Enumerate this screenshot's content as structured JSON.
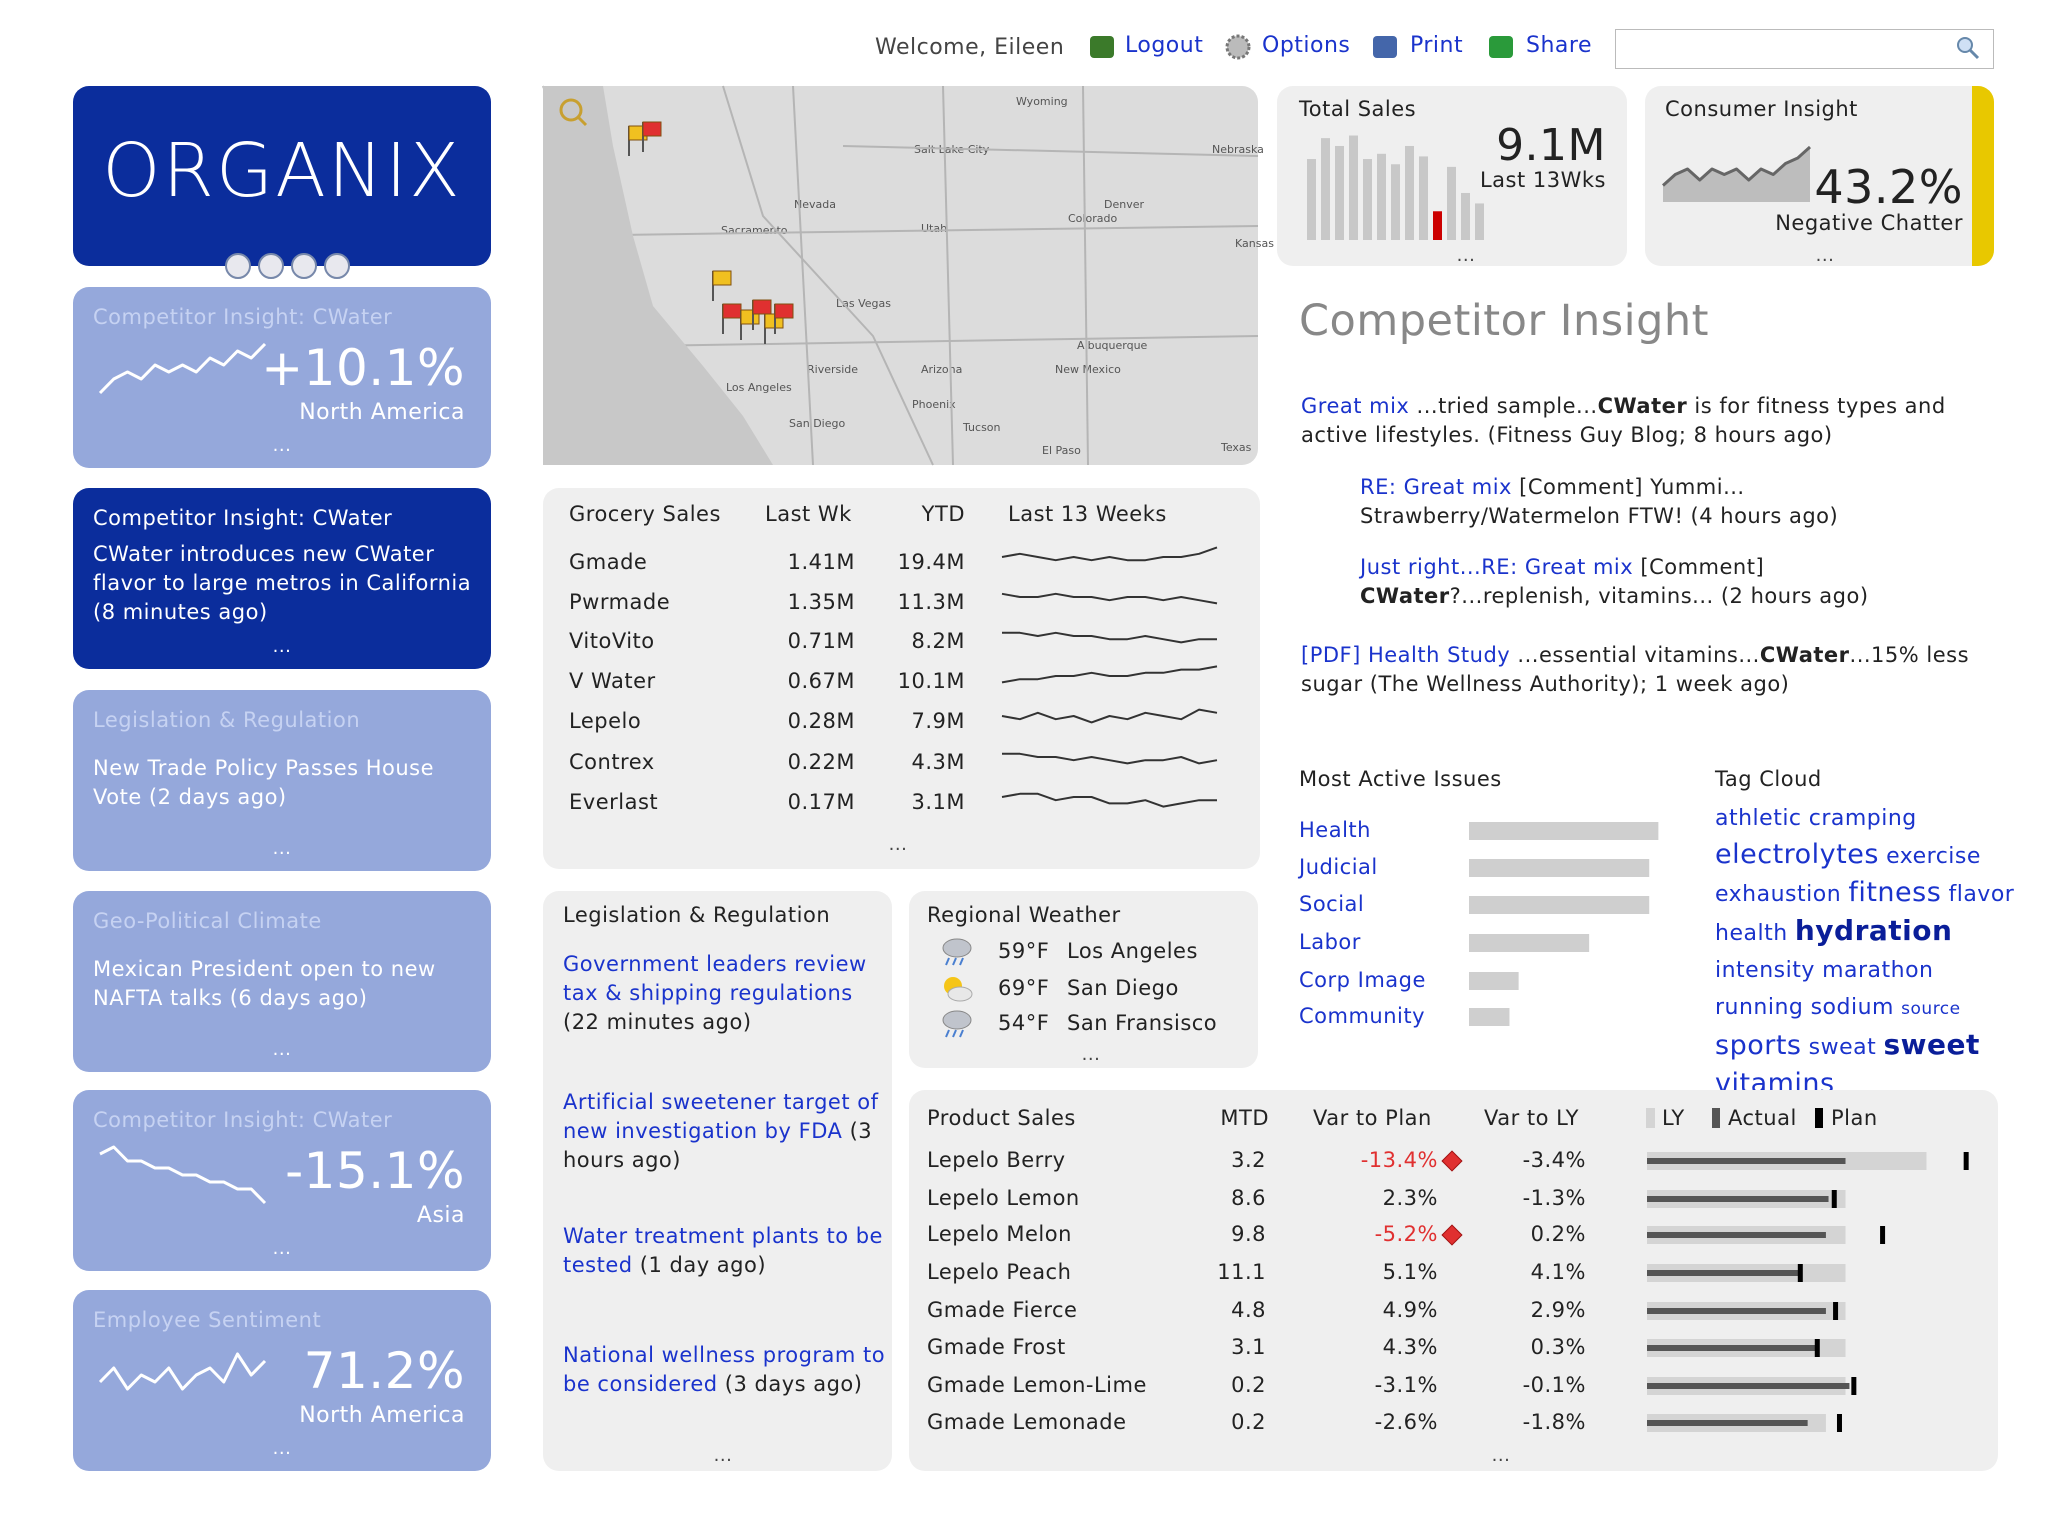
{
  "header": {
    "welcome": "Welcome, Eileen",
    "links": [
      "Logout",
      "Options",
      "Print",
      "Share"
    ]
  },
  "more": "...",
  "logo": "ORGANIX",
  "tiles": [
    {
      "theme": "light",
      "title": "Competitor Insight: CWater",
      "value": "+10.1%",
      "region": "North America",
      "trend": [
        2,
        4,
        5,
        4,
        6,
        5,
        6,
        5,
        7,
        6,
        8,
        7,
        9
      ]
    },
    {
      "theme": "dark",
      "title": "Competitor Insight: CWater",
      "text": "CWater introduces new CWater flavor to large metros in California (8 minutes ago)"
    },
    {
      "theme": "light",
      "title": "Legislation & Regulation",
      "text": "New Trade Policy Passes House Vote (2 days ago)"
    },
    {
      "theme": "light",
      "title": "Geo-Political Climate",
      "text": "Mexican President open to new NAFTA talks (6 days ago)"
    },
    {
      "theme": "light",
      "title": "Competitor Insight: CWater",
      "value": "-15.1%",
      "region": "Asia",
      "trend": [
        8,
        9,
        7,
        7,
        6,
        6,
        5,
        5,
        4,
        4,
        3,
        3,
        1
      ]
    },
    {
      "theme": "light",
      "title": "Employee Sentiment",
      "value": "71.2%",
      "region": "North America",
      "trend": [
        4,
        6,
        3,
        5,
        4,
        6,
        3,
        5,
        6,
        4,
        8,
        5,
        7
      ]
    }
  ],
  "map": {
    "labels": [
      "Wyoming",
      "Nebraska",
      "Salt Lake City",
      "Nevada",
      "Denver",
      "Utah",
      "Colorado",
      "Kansas",
      "Sacramento",
      "Las Vegas",
      "Albuquerque",
      "Arizona",
      "New Mexico",
      "Riverside",
      "Los Angeles",
      "Phoenix",
      "San Diego",
      "Tucson",
      "El Paso",
      "Texas"
    ]
  },
  "total_sales": {
    "title": "Total Sales",
    "value": "9.1M",
    "label": "Last 13Wks",
    "bars": [
      62,
      78,
      72,
      80,
      62,
      66,
      58,
      72,
      64,
      22,
      56,
      36,
      28
    ],
    "color": "#c8c8c8",
    "highlight": 9,
    "highlight_color": "#cc0000"
  },
  "consumer_insight": {
    "title": "Consumer Insight",
    "value": "43.2%",
    "label": "Negative Chatter",
    "trend": [
      3,
      5,
      6,
      4,
      6,
      5,
      6,
      4,
      6,
      5,
      7,
      8,
      10
    ],
    "status_color": "#e8c800"
  },
  "grocery": {
    "columns": [
      "Grocery Sales",
      "Last Wk",
      "YTD",
      "Last 13 Weeks"
    ],
    "rows": [
      {
        "name": "Gmade",
        "last_wk": "1.41M",
        "ytd": "19.4M",
        "trend": [
          5,
          6,
          5,
          4,
          5,
          4,
          5,
          4,
          4,
          5,
          5,
          6,
          8
        ]
      },
      {
        "name": "Pwrmade",
        "last_wk": "1.35M",
        "ytd": "11.3M",
        "trend": [
          6,
          5,
          5,
          6,
          5,
          5,
          4,
          5,
          5,
          4,
          5,
          4,
          3
        ]
      },
      {
        "name": "VitoVito",
        "last_wk": "0.71M",
        "ytd": "8.2M",
        "trend": [
          6,
          6,
          5,
          6,
          5,
          5,
          4,
          4,
          5,
          4,
          3,
          4,
          4
        ]
      },
      {
        "name": "V Water",
        "last_wk": "0.67M",
        "ytd": "10.1M",
        "trend": [
          3,
          4,
          4,
          5,
          5,
          6,
          5,
          5,
          6,
          6,
          7,
          7,
          8
        ]
      },
      {
        "name": "Lepelo",
        "last_wk": "0.28M",
        "ytd": "7.9M",
        "trend": [
          5,
          4,
          6,
          4,
          5,
          3,
          5,
          4,
          6,
          5,
          4,
          7,
          6
        ]
      },
      {
        "name": "Contrex",
        "last_wk": "0.22M",
        "ytd": "4.3M",
        "trend": [
          6,
          6,
          5,
          5,
          4,
          5,
          4,
          3,
          4,
          4,
          5,
          3,
          4
        ]
      },
      {
        "name": "Everlast",
        "last_wk": "0.17M",
        "ytd": "3.1M",
        "trend": [
          5,
          6,
          6,
          4,
          5,
          5,
          3,
          3,
          4,
          2,
          3,
          4,
          4
        ]
      }
    ]
  },
  "legislation": {
    "title": "Legislation & Regulation",
    "items": [
      {
        "link": "Government leaders review tax & shipping regulations",
        "time": "(22 minutes ago)"
      },
      {
        "link": "Artificial sweetener target of new investigation by FDA",
        "time": "(3 hours ago)"
      },
      {
        "link": "Water treatment plants to be tested",
        "time": "(1 day ago)"
      },
      {
        "link": "National wellness program to be considered",
        "time": "(3 days ago)"
      }
    ]
  },
  "weather": {
    "title": "Regional Weather",
    "rows": [
      {
        "icon": "rain",
        "temp": "59°F",
        "city": "Los Angeles"
      },
      {
        "icon": "sun",
        "temp": "69°F",
        "city": "San Diego"
      },
      {
        "icon": "rain",
        "temp": "54°F",
        "city": "San Fransisco"
      }
    ]
  },
  "competitor_insight": {
    "title": "Competitor Insight",
    "items": [
      {
        "indent": 0,
        "parts": [
          {
            "style": "link",
            "text": "Great mix"
          },
          {
            "style": "plain",
            "text": " ...tried sample..."
          },
          {
            "style": "bold",
            "text": "CWater"
          },
          {
            "style": "plain",
            "text": " is for fitness types and active lifestyles. (Fitness Guy Blog; 8 hours ago)"
          }
        ]
      },
      {
        "indent": 1,
        "parts": [
          {
            "style": "link",
            "text": "RE: Great mix"
          },
          {
            "style": "plain",
            "text": " [Comment] Yummi... Strawberry/Watermelon  FTW! (4 hours ago)"
          }
        ]
      },
      {
        "indent": 1,
        "parts": [
          {
            "style": "link",
            "text": "Just right...RE: Great mix"
          },
          {
            "style": "plain",
            "text": " [Comment] "
          },
          {
            "style": "bold",
            "text": "CWater"
          },
          {
            "style": "plain",
            "text": "?...replenish, vitamins... (2 hours ago)"
          }
        ]
      },
      {
        "indent": 0,
        "parts": [
          {
            "style": "link",
            "text": "[PDF] Health Study"
          },
          {
            "style": "plain",
            "text": " ...essential vitamins..."
          },
          {
            "style": "bold",
            "text": "CWater"
          },
          {
            "style": "plain",
            "text": "...15% less sugar (The Wellness Authority); 1 week ago)"
          }
        ]
      }
    ]
  },
  "issues": {
    "title": "Most Active Issues",
    "color": "#cfcfcf",
    "items": [
      {
        "name": "Health",
        "value": 145
      },
      {
        "name": "Judicial",
        "value": 138
      },
      {
        "name": "Social",
        "value": 138
      },
      {
        "name": "Labor",
        "value": 92
      },
      {
        "name": "Corp Image",
        "value": 38
      },
      {
        "name": "Community",
        "value": 31
      }
    ]
  },
  "tag_cloud": {
    "title": "Tag Cloud",
    "tags": [
      {
        "text": "athletic",
        "weight": 2
      },
      {
        "text": "cramping",
        "weight": 2
      },
      {
        "text": "electrolytes",
        "weight": 3
      },
      {
        "text": "exercise",
        "weight": 2
      },
      {
        "text": "exhaustion",
        "weight": 2
      },
      {
        "text": "fitness",
        "weight": 3
      },
      {
        "text": "flavor",
        "weight": 2
      },
      {
        "text": "health",
        "weight": 2
      },
      {
        "text": "hydration",
        "weight": 4
      },
      {
        "text": "intensity",
        "weight": 2
      },
      {
        "text": "marathon",
        "weight": 2
      },
      {
        "text": "running",
        "weight": 2
      },
      {
        "text": "sodium",
        "weight": 2
      },
      {
        "text": "source",
        "weight": 1
      },
      {
        "text": "sports",
        "weight": 3
      },
      {
        "text": "sweat",
        "weight": 2
      },
      {
        "text": "sweet",
        "weight": 4
      },
      {
        "text": "vitamins",
        "weight": 3
      }
    ]
  },
  "product_sales": {
    "columns": [
      "Product Sales",
      "MTD",
      "Var to Plan",
      "Var to LY"
    ],
    "legend": [
      "LY",
      "Actual",
      "Plan"
    ],
    "colors": {
      "ly": "#d4d4d4",
      "actual": "#555555",
      "plan": "#000000",
      "alert": "#e03030"
    },
    "rows": [
      {
        "name": "Lepelo Berry",
        "mtd": "3.2",
        "var_plan": "-13.4%",
        "alert": true,
        "var_ly": "-3.4%",
        "ly": 214,
        "actual": 152,
        "plan": 244
      },
      {
        "name": "Lepelo Lemon",
        "mtd": "8.6",
        "var_plan": "2.3%",
        "alert": false,
        "var_ly": "-1.3%",
        "ly": 152,
        "actual": 139,
        "plan": 143
      },
      {
        "name": "Lepelo Melon",
        "mtd": "9.8",
        "var_plan": "-5.2%",
        "alert": true,
        "var_ly": "0.2%",
        "ly": 152,
        "actual": 137,
        "plan": 180
      },
      {
        "name": "Lepelo Peach",
        "mtd": "11.1",
        "var_plan": "5.1%",
        "alert": false,
        "var_ly": "4.1%",
        "ly": 152,
        "actual": 117,
        "plan": 117
      },
      {
        "name": "Gmade Fierce",
        "mtd": "4.8",
        "var_plan": "4.9%",
        "alert": false,
        "var_ly": "2.9%",
        "ly": 152,
        "actual": 137,
        "plan": 144
      },
      {
        "name": "Gmade Frost",
        "mtd": "3.1",
        "var_plan": "4.3%",
        "alert": false,
        "var_ly": "0.3%",
        "ly": 152,
        "actual": 130,
        "plan": 130
      },
      {
        "name": "Gmade Lemon-Lime",
        "mtd": "0.2",
        "var_plan": "-3.1%",
        "alert": false,
        "var_ly": "-0.1%",
        "ly": 152,
        "actual": 155,
        "plan": 158
      },
      {
        "name": "Gmade Lemonade",
        "mtd": "0.2",
        "var_plan": "-2.6%",
        "alert": false,
        "var_ly": "-1.8%",
        "ly": 137,
        "actual": 123,
        "plan": 147
      }
    ]
  }
}
